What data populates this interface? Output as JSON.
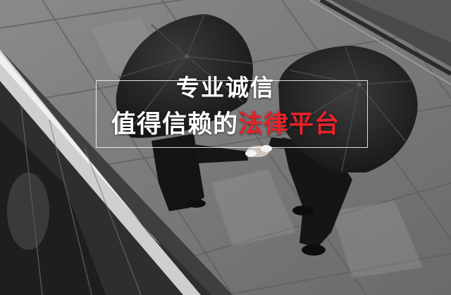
{
  "banner": {
    "line1": "专业诚信",
    "line2_white": "值得信赖的",
    "line2_red": "法律平台"
  },
  "colors": {
    "accent": "#e8222a",
    "text": "#ffffff"
  }
}
